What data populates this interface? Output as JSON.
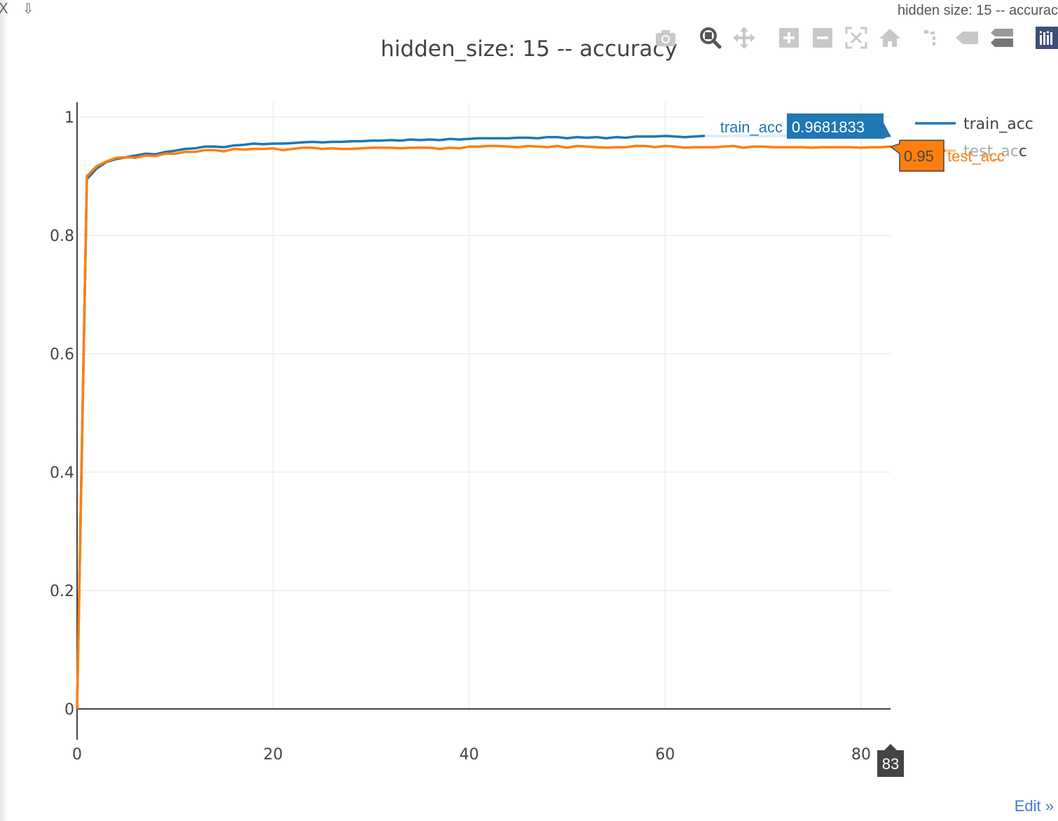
{
  "window": {
    "close_glyph": "X",
    "download_glyph": "⇩",
    "title": "hidden  size: 15 -- accurac"
  },
  "modebar": {
    "buttons": [
      "camera-icon",
      "zoom-icon",
      "pan-icon",
      "zoom-in-icon",
      "zoom-out-icon",
      "autoscale-icon",
      "reset-axes-icon",
      "spike-lines-icon",
      "hover-closest-icon",
      "hover-compare-icon",
      "plotly-logo-icon"
    ]
  },
  "edit_link": "Edit »",
  "colors": {
    "train": "#1f77b4",
    "test": "#ff7f0e",
    "grid": "#eeeeee",
    "axis": "#444444"
  },
  "chart_data": {
    "type": "line",
    "title": "hidden_size: 15 -- accuracy",
    "xlabel": "",
    "ylabel": "",
    "xlim": [
      0,
      83
    ],
    "ylim": [
      0,
      1
    ],
    "xticks": [
      0,
      20,
      40,
      60,
      80
    ],
    "yticks": [
      0,
      0.2,
      0.4,
      0.6,
      0.8,
      1
    ],
    "ytick_labels": [
      "0",
      "0.2",
      "0.4",
      "0.6",
      "0.8",
      "1"
    ],
    "grid": true,
    "legend": "right",
    "x": [
      0,
      1,
      2,
      3,
      4,
      5,
      6,
      7,
      8,
      9,
      10,
      11,
      12,
      13,
      14,
      15,
      16,
      17,
      18,
      19,
      20,
      21,
      22,
      23,
      24,
      25,
      26,
      27,
      28,
      29,
      30,
      31,
      32,
      33,
      34,
      35,
      36,
      37,
      38,
      39,
      40,
      41,
      42,
      43,
      44,
      45,
      46,
      47,
      48,
      49,
      50,
      51,
      52,
      53,
      54,
      55,
      56,
      57,
      58,
      59,
      60,
      61,
      62,
      63,
      64,
      65,
      66,
      67,
      68,
      69,
      70,
      71,
      72,
      73,
      74,
      75,
      76,
      77,
      78,
      79,
      80,
      81,
      82,
      83
    ],
    "series": [
      {
        "name": "train_acc",
        "color": "#1f77b4",
        "values": [
          0.0,
          0.895,
          0.913,
          0.924,
          0.929,
          0.932,
          0.935,
          0.938,
          0.937,
          0.941,
          0.943,
          0.946,
          0.947,
          0.95,
          0.95,
          0.949,
          0.952,
          0.953,
          0.955,
          0.954,
          0.955,
          0.955,
          0.956,
          0.957,
          0.958,
          0.957,
          0.958,
          0.958,
          0.959,
          0.959,
          0.96,
          0.96,
          0.961,
          0.96,
          0.962,
          0.961,
          0.962,
          0.961,
          0.963,
          0.962,
          0.963,
          0.964,
          0.964,
          0.964,
          0.964,
          0.965,
          0.965,
          0.964,
          0.966,
          0.966,
          0.964,
          0.966,
          0.965,
          0.966,
          0.964,
          0.966,
          0.965,
          0.967,
          0.967,
          0.967,
          0.968,
          0.967,
          0.966,
          0.967,
          0.968,
          0.968,
          0.967,
          0.968,
          0.968,
          0.968,
          0.967,
          0.968,
          0.968,
          0.968,
          0.967,
          0.968,
          0.968,
          0.969,
          0.968,
          0.968,
          0.968,
          0.969,
          0.968,
          0.9681833
        ]
      },
      {
        "name": "test_acc",
        "color": "#ff7f0e",
        "values": [
          0.0,
          0.9,
          0.917,
          0.925,
          0.931,
          0.932,
          0.931,
          0.935,
          0.934,
          0.938,
          0.938,
          0.941,
          0.941,
          0.944,
          0.944,
          0.942,
          0.946,
          0.945,
          0.946,
          0.946,
          0.947,
          0.944,
          0.946,
          0.948,
          0.948,
          0.946,
          0.947,
          0.946,
          0.946,
          0.947,
          0.948,
          0.948,
          0.948,
          0.947,
          0.948,
          0.948,
          0.948,
          0.946,
          0.948,
          0.947,
          0.95,
          0.95,
          0.951,
          0.951,
          0.95,
          0.949,
          0.951,
          0.95,
          0.949,
          0.951,
          0.948,
          0.951,
          0.95,
          0.949,
          0.948,
          0.949,
          0.949,
          0.951,
          0.951,
          0.949,
          0.951,
          0.95,
          0.948,
          0.949,
          0.949,
          0.949,
          0.95,
          0.951,
          0.948,
          0.95,
          0.95,
          0.949,
          0.949,
          0.949,
          0.949,
          0.948,
          0.949,
          0.949,
          0.949,
          0.949,
          0.948,
          0.949,
          0.949,
          0.95
        ]
      }
    ],
    "hover": {
      "x_label": "83",
      "train_value": "0.9681833",
      "test_value": "0.95"
    }
  }
}
